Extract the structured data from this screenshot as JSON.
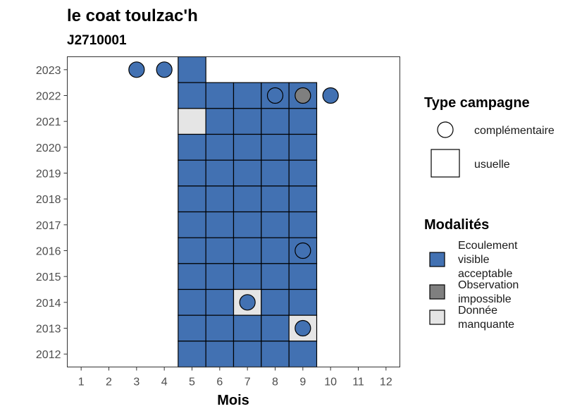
{
  "chart_data": {
    "type": "heatmap",
    "title": "le coat toulzac'h",
    "subtitle": "J2710001",
    "xlabel": "Mois",
    "ylabel": "",
    "x_ticks": [
      1,
      2,
      3,
      4,
      5,
      6,
      7,
      8,
      9,
      10,
      11,
      12
    ],
    "y_ticks": [
      2012,
      2013,
      2014,
      2015,
      2016,
      2017,
      2018,
      2019,
      2020,
      2021,
      2022,
      2023
    ],
    "xlim": [
      0.5,
      12.5
    ],
    "ylim": [
      2011.5,
      2023.5
    ],
    "colors": {
      "Ecoulement visible acceptable": "#4271b2",
      "Observation impossible": "#7f7f7f",
      "Donnée manquante": "#e5e5e5"
    },
    "cells_usuelle": [
      {
        "year": 2023,
        "month": 5,
        "modalite": "Ecoulement visible acceptable"
      },
      {
        "year": 2022,
        "month": 5,
        "modalite": "Ecoulement visible acceptable"
      },
      {
        "year": 2022,
        "month": 6,
        "modalite": "Ecoulement visible acceptable"
      },
      {
        "year": 2022,
        "month": 7,
        "modalite": "Ecoulement visible acceptable"
      },
      {
        "year": 2022,
        "month": 8,
        "modalite": "Ecoulement visible acceptable"
      },
      {
        "year": 2022,
        "month": 9,
        "modalite": "Ecoulement visible acceptable"
      },
      {
        "year": 2021,
        "month": 5,
        "modalite": "Donnée manquante"
      },
      {
        "year": 2021,
        "month": 6,
        "modalite": "Ecoulement visible acceptable"
      },
      {
        "year": 2021,
        "month": 7,
        "modalite": "Ecoulement visible acceptable"
      },
      {
        "year": 2021,
        "month": 8,
        "modalite": "Ecoulement visible acceptable"
      },
      {
        "year": 2021,
        "month": 9,
        "modalite": "Ecoulement visible acceptable"
      },
      {
        "year": 2020,
        "month": 5,
        "modalite": "Ecoulement visible acceptable"
      },
      {
        "year": 2020,
        "month": 6,
        "modalite": "Ecoulement visible acceptable"
      },
      {
        "year": 2020,
        "month": 7,
        "modalite": "Ecoulement visible acceptable"
      },
      {
        "year": 2020,
        "month": 8,
        "modalite": "Ecoulement visible acceptable"
      },
      {
        "year": 2020,
        "month": 9,
        "modalite": "Ecoulement visible acceptable"
      },
      {
        "year": 2019,
        "month": 5,
        "modalite": "Ecoulement visible acceptable"
      },
      {
        "year": 2019,
        "month": 6,
        "modalite": "Ecoulement visible acceptable"
      },
      {
        "year": 2019,
        "month": 7,
        "modalite": "Ecoulement visible acceptable"
      },
      {
        "year": 2019,
        "month": 8,
        "modalite": "Ecoulement visible acceptable"
      },
      {
        "year": 2019,
        "month": 9,
        "modalite": "Ecoulement visible acceptable"
      },
      {
        "year": 2018,
        "month": 5,
        "modalite": "Ecoulement visible acceptable"
      },
      {
        "year": 2018,
        "month": 6,
        "modalite": "Ecoulement visible acceptable"
      },
      {
        "year": 2018,
        "month": 7,
        "modalite": "Ecoulement visible acceptable"
      },
      {
        "year": 2018,
        "month": 8,
        "modalite": "Ecoulement visible acceptable"
      },
      {
        "year": 2018,
        "month": 9,
        "modalite": "Ecoulement visible acceptable"
      },
      {
        "year": 2017,
        "month": 5,
        "modalite": "Ecoulement visible acceptable"
      },
      {
        "year": 2017,
        "month": 6,
        "modalite": "Ecoulement visible acceptable"
      },
      {
        "year": 2017,
        "month": 7,
        "modalite": "Ecoulement visible acceptable"
      },
      {
        "year": 2017,
        "month": 8,
        "modalite": "Ecoulement visible acceptable"
      },
      {
        "year": 2017,
        "month": 9,
        "modalite": "Ecoulement visible acceptable"
      },
      {
        "year": 2016,
        "month": 5,
        "modalite": "Ecoulement visible acceptable"
      },
      {
        "year": 2016,
        "month": 6,
        "modalite": "Ecoulement visible acceptable"
      },
      {
        "year": 2016,
        "month": 7,
        "modalite": "Ecoulement visible acceptable"
      },
      {
        "year": 2016,
        "month": 8,
        "modalite": "Ecoulement visible acceptable"
      },
      {
        "year": 2016,
        "month": 9,
        "modalite": "Ecoulement visible acceptable"
      },
      {
        "year": 2015,
        "month": 5,
        "modalite": "Ecoulement visible acceptable"
      },
      {
        "year": 2015,
        "month": 6,
        "modalite": "Ecoulement visible acceptable"
      },
      {
        "year": 2015,
        "month": 7,
        "modalite": "Ecoulement visible acceptable"
      },
      {
        "year": 2015,
        "month": 8,
        "modalite": "Ecoulement visible acceptable"
      },
      {
        "year": 2015,
        "month": 9,
        "modalite": "Ecoulement visible acceptable"
      },
      {
        "year": 2014,
        "month": 5,
        "modalite": "Ecoulement visible acceptable"
      },
      {
        "year": 2014,
        "month": 6,
        "modalite": "Ecoulement visible acceptable"
      },
      {
        "year": 2014,
        "month": 7,
        "modalite": "Donnée manquante"
      },
      {
        "year": 2014,
        "month": 8,
        "modalite": "Ecoulement visible acceptable"
      },
      {
        "year": 2014,
        "month": 9,
        "modalite": "Ecoulement visible acceptable"
      },
      {
        "year": 2013,
        "month": 5,
        "modalite": "Ecoulement visible acceptable"
      },
      {
        "year": 2013,
        "month": 6,
        "modalite": "Ecoulement visible acceptable"
      },
      {
        "year": 2013,
        "month": 7,
        "modalite": "Ecoulement visible acceptable"
      },
      {
        "year": 2013,
        "month": 8,
        "modalite": "Ecoulement visible acceptable"
      },
      {
        "year": 2013,
        "month": 9,
        "modalite": "Donnée manquante"
      },
      {
        "year": 2012,
        "month": 5,
        "modalite": "Ecoulement visible acceptable"
      },
      {
        "year": 2012,
        "month": 6,
        "modalite": "Ecoulement visible acceptable"
      },
      {
        "year": 2012,
        "month": 7,
        "modalite": "Ecoulement visible acceptable"
      },
      {
        "year": 2012,
        "month": 8,
        "modalite": "Ecoulement visible acceptable"
      },
      {
        "year": 2012,
        "month": 9,
        "modalite": "Ecoulement visible acceptable"
      }
    ],
    "points_complementaire": [
      {
        "year": 2023,
        "month": 3,
        "modalite": "Ecoulement visible acceptable"
      },
      {
        "year": 2023,
        "month": 4,
        "modalite": "Ecoulement visible acceptable"
      },
      {
        "year": 2022,
        "month": 8,
        "modalite": "Ecoulement visible acceptable"
      },
      {
        "year": 2022,
        "month": 9,
        "modalite": "Observation impossible"
      },
      {
        "year": 2022,
        "month": 10,
        "modalite": "Ecoulement visible acceptable"
      },
      {
        "year": 2016,
        "month": 9,
        "modalite": "Ecoulement visible acceptable"
      },
      {
        "year": 2014,
        "month": 7,
        "modalite": "Ecoulement visible acceptable"
      },
      {
        "year": 2013,
        "month": 9,
        "modalite": "Ecoulement visible acceptable"
      }
    ],
    "legend_type": {
      "title": "Type campagne",
      "items": [
        "complémentaire",
        "usuelle"
      ]
    },
    "legend_modalites": {
      "title": "Modalités",
      "items": [
        {
          "lines": [
            "Ecoulement",
            "visible",
            "acceptable"
          ],
          "key": "Ecoulement visible acceptable"
        },
        {
          "lines": [
            "Observation",
            "impossible"
          ],
          "key": "Observation impossible"
        },
        {
          "lines": [
            "Donnée",
            "manquante"
          ],
          "key": "Donnée manquante"
        }
      ]
    }
  }
}
